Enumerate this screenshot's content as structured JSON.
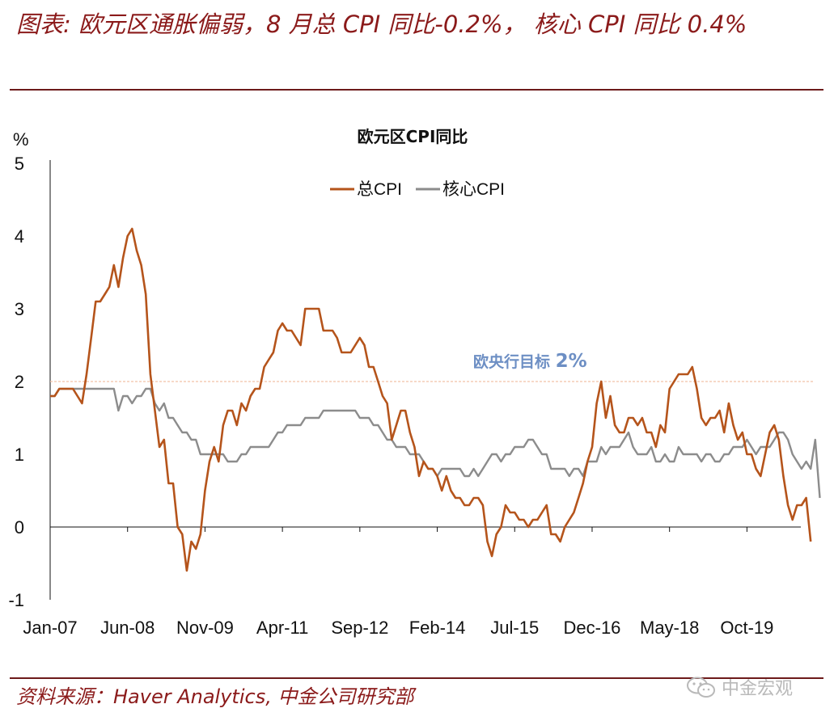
{
  "header": {
    "title": "图表: 欧元区通胀偏弱，8 月总 CPI 同比-0.2%， 核心 CPI 同比 0.4%"
  },
  "footer": {
    "source": "资料来源：Haver Analytics, 中金公司研究部",
    "watermark": "中金宏观",
    "watermark_icon": "wechat-icon"
  },
  "colors": {
    "title_red": "#8b1a1a",
    "rule": "#6d1a1a",
    "headline": "#b5541b",
    "core": "#8c8c8c",
    "target_line": "#f2c2a8",
    "target_label": "#6d8fc4"
  },
  "chart_data": {
    "type": "line",
    "title": "欧元区CPI同比",
    "unit_label": "%",
    "ylim": [
      -1,
      5
    ],
    "yticks": [
      "5",
      "4",
      "3",
      "2",
      "1",
      "0",
      "-1"
    ],
    "x_tick_labels": [
      "Jan-07",
      "Jun-08",
      "Nov-09",
      "Apr-11",
      "Sep-12",
      "Feb-14",
      "Jul-15",
      "Dec-16",
      "May-18",
      "Oct-19"
    ],
    "x_start": "2007-01",
    "grid": false,
    "legend_position": "top-center",
    "reference_line": {
      "value": 2,
      "label_prefix": "欧央行目标 ",
      "label_value": "2%"
    },
    "series": [
      {
        "name": "总CPI",
        "color": "#b5541b",
        "values": [
          1.8,
          1.8,
          1.9,
          1.9,
          1.9,
          1.9,
          1.8,
          1.7,
          2.1,
          2.6,
          3.1,
          3.1,
          3.2,
          3.3,
          3.6,
          3.3,
          3.7,
          4.0,
          4.1,
          3.8,
          3.6,
          3.2,
          2.1,
          1.6,
          1.1,
          1.2,
          0.6,
          0.6,
          0.0,
          -0.1,
          -0.6,
          -0.2,
          -0.3,
          -0.1,
          0.5,
          0.9,
          1.1,
          0.9,
          1.4,
          1.6,
          1.6,
          1.4,
          1.7,
          1.6,
          1.8,
          1.9,
          1.9,
          2.2,
          2.3,
          2.4,
          2.7,
          2.8,
          2.7,
          2.7,
          2.6,
          2.5,
          3.0,
          3.0,
          3.0,
          3.0,
          2.7,
          2.7,
          2.7,
          2.6,
          2.4,
          2.4,
          2.4,
          2.5,
          2.6,
          2.5,
          2.2,
          2.2,
          2.0,
          1.8,
          1.7,
          1.2,
          1.4,
          1.6,
          1.6,
          1.3,
          1.1,
          0.7,
          0.9,
          0.8,
          0.8,
          0.7,
          0.5,
          0.7,
          0.5,
          0.4,
          0.4,
          0.3,
          0.3,
          0.4,
          0.4,
          0.3,
          -0.2,
          -0.4,
          -0.1,
          0.0,
          0.3,
          0.2,
          0.2,
          0.1,
          0.1,
          0.0,
          0.1,
          0.1,
          0.2,
          0.3,
          -0.1,
          -0.1,
          -0.2,
          0.0,
          0.1,
          0.2,
          0.4,
          0.6,
          0.9,
          1.1,
          1.7,
          2.0,
          1.5,
          1.8,
          1.4,
          1.3,
          1.3,
          1.5,
          1.5,
          1.4,
          1.5,
          1.3,
          1.3,
          1.1,
          1.4,
          1.3,
          1.9,
          2.0,
          2.1,
          2.1,
          2.1,
          2.2,
          1.9,
          1.5,
          1.4,
          1.5,
          1.5,
          1.6,
          1.3,
          1.7,
          1.4,
          1.2,
          1.3,
          1.0,
          1.0,
          0.8,
          0.7,
          1.0,
          1.3,
          1.4,
          1.2,
          0.7,
          0.3,
          0.1,
          0.3,
          0.3,
          0.4,
          -0.2
        ]
      },
      {
        "name": "核心CPI",
        "color": "#8c8c8c",
        "values": [
          1.8,
          1.8,
          1.9,
          1.9,
          1.9,
          1.9,
          1.9,
          1.9,
          1.9,
          1.9,
          1.9,
          1.9,
          1.9,
          1.9,
          1.9,
          1.6,
          1.8,
          1.8,
          1.7,
          1.8,
          1.8,
          1.9,
          1.9,
          1.7,
          1.6,
          1.7,
          1.5,
          1.5,
          1.4,
          1.3,
          1.3,
          1.2,
          1.2,
          1.0,
          1.0,
          1.0,
          1.0,
          1.0,
          1.0,
          0.9,
          0.9,
          0.9,
          1.0,
          1.0,
          1.1,
          1.1,
          1.1,
          1.1,
          1.1,
          1.2,
          1.3,
          1.3,
          1.4,
          1.4,
          1.4,
          1.4,
          1.5,
          1.5,
          1.5,
          1.5,
          1.6,
          1.6,
          1.6,
          1.6,
          1.6,
          1.6,
          1.6,
          1.6,
          1.5,
          1.5,
          1.5,
          1.4,
          1.4,
          1.3,
          1.2,
          1.2,
          1.1,
          1.1,
          1.1,
          1.0,
          1.0,
          1.0,
          0.9,
          0.8,
          0.8,
          0.7,
          0.8,
          0.8,
          0.8,
          0.8,
          0.8,
          0.7,
          0.7,
          0.8,
          0.7,
          0.8,
          0.9,
          1.0,
          1.0,
          0.9,
          1.0,
          1.0,
          1.1,
          1.1,
          1.1,
          1.2,
          1.2,
          1.1,
          1.0,
          1.0,
          0.8,
          0.8,
          0.8,
          0.8,
          0.7,
          0.8,
          0.8,
          0.7,
          0.9,
          0.9,
          0.9,
          1.1,
          1.0,
          1.1,
          1.1,
          1.1,
          1.2,
          1.3,
          1.1,
          1.0,
          1.0,
          1.0,
          1.1,
          0.9,
          0.9,
          1.0,
          0.9,
          0.9,
          1.1,
          1.0,
          1.0,
          1.0,
          1.0,
          0.9,
          1.0,
          1.0,
          0.9,
          0.9,
          1.0,
          1.0,
          1.1,
          1.1,
          1.1,
          1.2,
          1.1,
          1.0,
          1.1,
          1.1,
          1.1,
          1.2,
          1.3,
          1.3,
          1.2,
          1.0,
          0.9,
          0.8,
          0.9,
          0.8,
          1.2,
          0.4
        ]
      }
    ]
  }
}
